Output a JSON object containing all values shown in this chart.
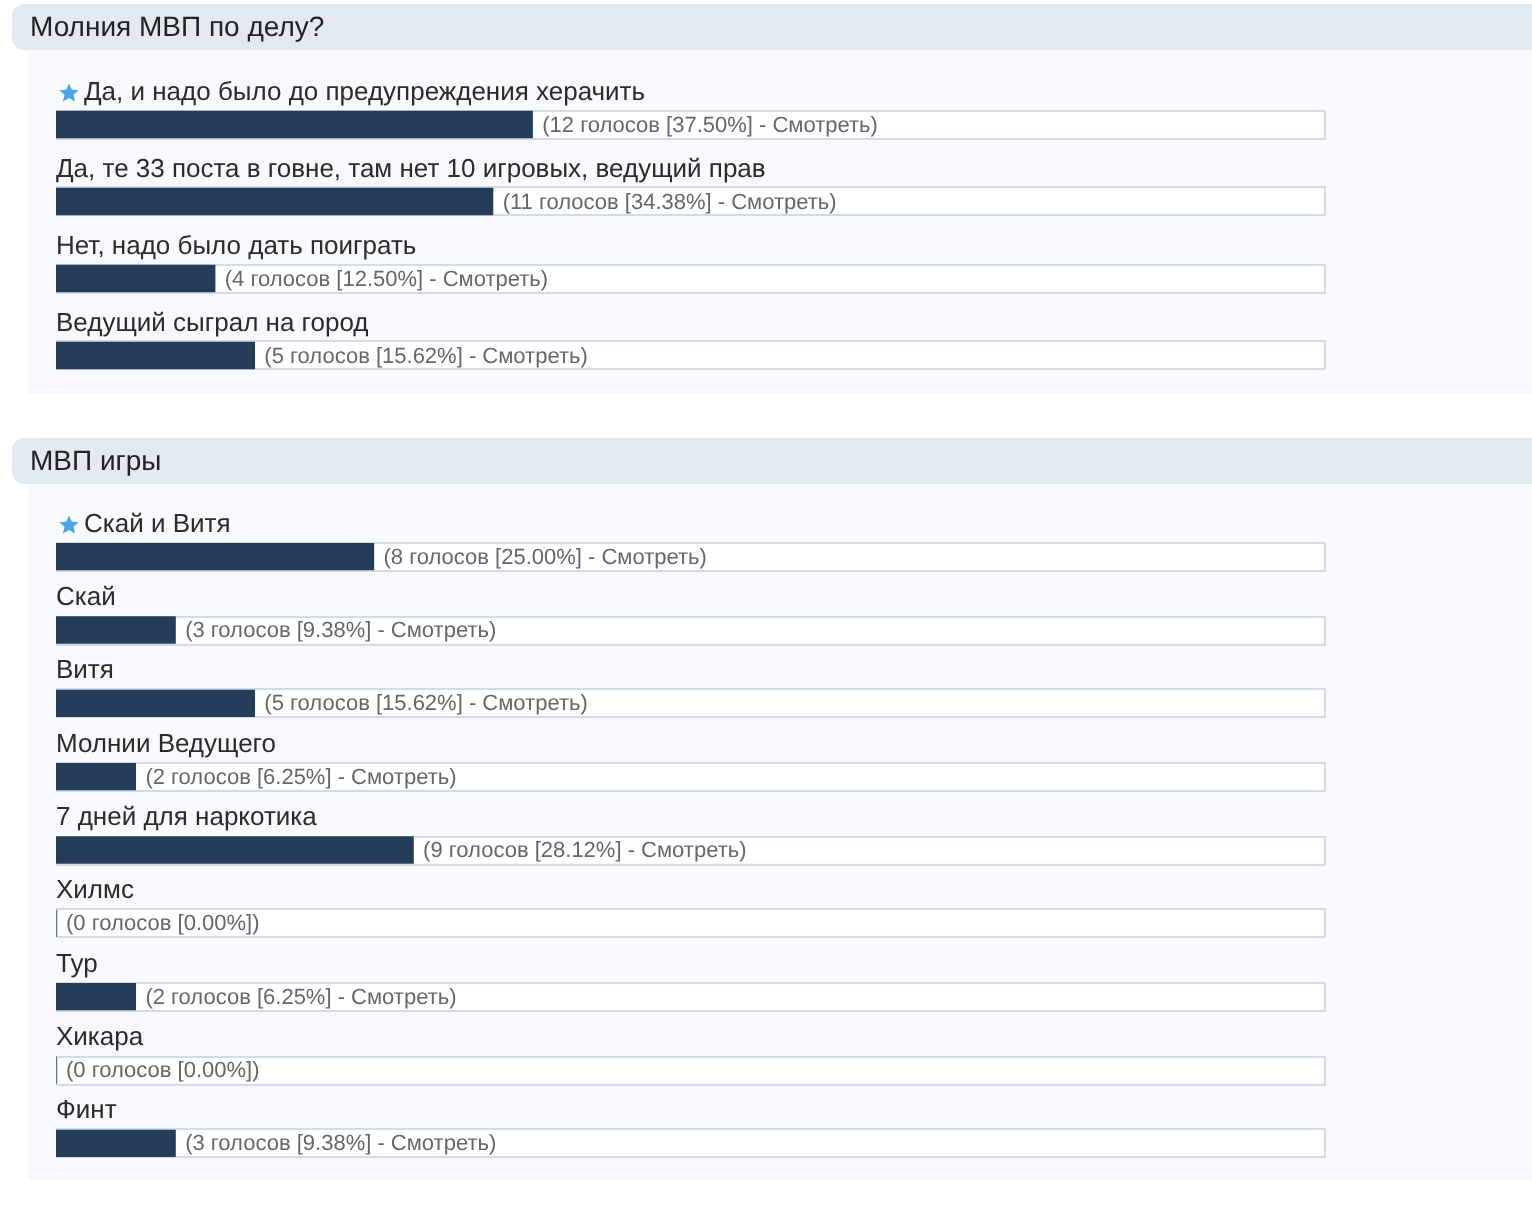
{
  "chart_data": [
    {
      "type": "bar",
      "orientation": "horizontal",
      "title": "Молния МВП по делу?",
      "categories": [
        "Да, и надо было до предупреждения херачить",
        "Да, те 33 поста в говне, там нет 10 игровых, ведущий прав",
        "Нет, надо было дать поиграть",
        "Ведущий сыграл на город"
      ],
      "values": [
        37.5,
        34.38,
        12.5,
        15.62
      ],
      "value_labels": [
        "(12 голосов [37.50%] - Смотреть)",
        "(11 голосов [34.38%] - Смотреть)",
        "(4 голосов [12.50%] - Смотреть)",
        "(5 голосов [15.62%] - Смотреть)"
      ],
      "color": "#253d5b",
      "xlim": [
        0,
        100
      ],
      "tick_labels": false
    },
    {
      "type": "bar",
      "orientation": "horizontal",
      "title": "МВП игры",
      "categories": [
        "Скай и Витя",
        "Скай",
        "Витя",
        "Молнии Ведущего",
        "7 дней для наркотика",
        "Хилмс",
        "Тур",
        "Хикара",
        "Финт"
      ],
      "values": [
        25.0,
        9.38,
        15.62,
        6.25,
        28.12,
        0.0,
        6.25,
        0.0,
        9.38
      ],
      "value_labels": [
        "(8 голосов [25.00%] - Смотреть)",
        "(3 голосов [9.38%] - Смотреть)",
        "(5 голосов [15.62%] - Смотреть)",
        "(2 голосов [6.25%] - Смотреть)",
        "(9 голосов [28.12%] - Смотреть)",
        "(0 голосов [0.00%])",
        "(2 голосов [6.25%] - Смотреть)",
        "(0 голосов [0.00%])",
        "(3 голосов [9.38%] - Смотреть)"
      ],
      "color": "#253d5b",
      "xlim": [
        0,
        100
      ],
      "tick_labels": false
    }
  ]
}
